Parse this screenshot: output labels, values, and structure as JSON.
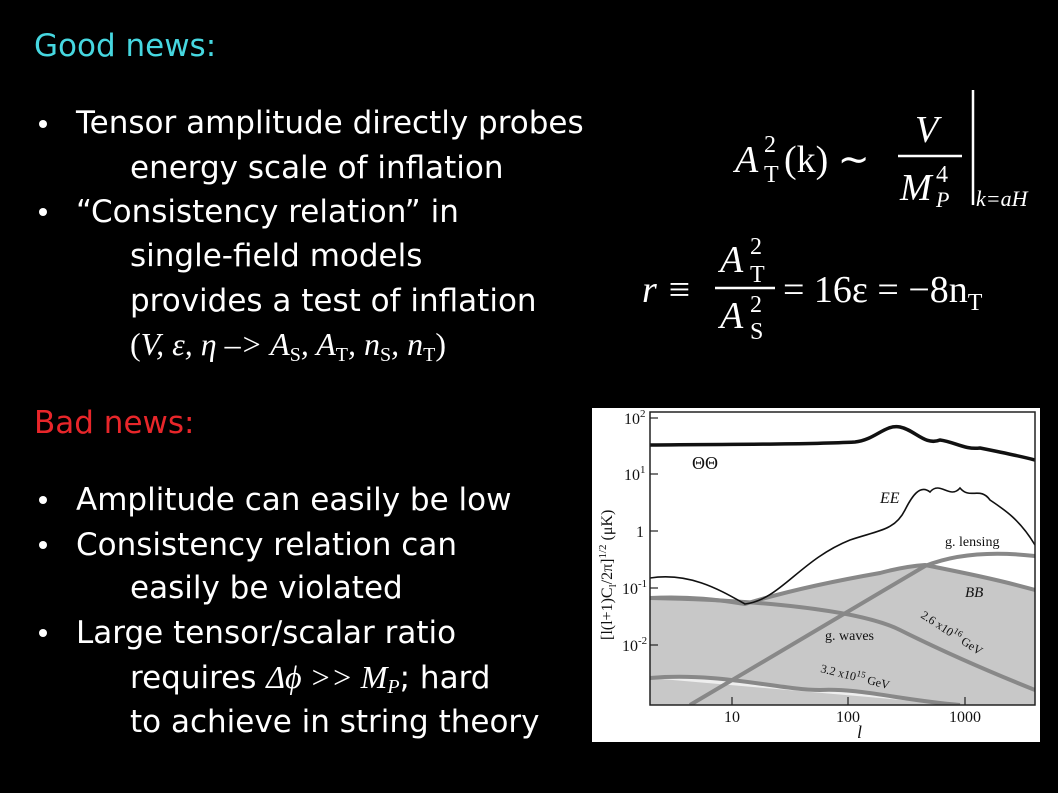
{
  "good_news": {
    "heading": "Good news:",
    "bullets": [
      {
        "lines": [
          "Tensor amplitude directly probes",
          "energy scale of inflation"
        ]
      },
      {
        "lines": [
          "“Consistency relation” in",
          "single-field models",
          "provides a test of inflation"
        ],
        "params": [
          "(",
          "V, ε, η  –> A",
          "S",
          ", A",
          "T",
          ", n",
          "S",
          ", n",
          "T",
          ")"
        ]
      }
    ]
  },
  "formulas": {
    "amplitude": {
      "lhs": "A",
      "lhs_sup": "2",
      "lhs_sub": "T",
      "lhs_arg": "(k) ∼",
      "num": "V",
      "den": "M",
      "den_sup": "4",
      "den_sub": "P",
      "eval": "k=aH"
    },
    "ratio": {
      "lhs": "r ≡",
      "num": "A",
      "num_sup": "2",
      "num_sub": "T",
      "den": "A",
      "den_sup": "2",
      "den_sub": "S",
      "rhs": "= 16ε = −8n",
      "rhs_sub": "T"
    }
  },
  "bad_news": {
    "heading": "Bad news:",
    "bullets": [
      {
        "lines": [
          "Amplitude can easily be low"
        ]
      },
      {
        "lines": [
          "Consistency relation can",
          "easily be violated"
        ]
      },
      {
        "lines": [
          "Large tensor/scalar ratio"
        ],
        "requires": [
          "requires ",
          "Δϕ >> M",
          "P",
          "; hard"
        ],
        "last": "to achieve in string theory"
      }
    ]
  },
  "plot": {
    "yticks": [
      {
        "base": "10",
        "exp": "2"
      },
      {
        "base": "10",
        "exp": "1"
      },
      {
        "base": "1"
      },
      {
        "base": "10",
        "exp": "-1"
      },
      {
        "base": "10",
        "exp": "-2"
      }
    ],
    "xticks": [
      "10",
      "100",
      "1000"
    ],
    "xlabel": "l",
    "ylabel": [
      "[l(l+1)C",
      "l",
      "/2π]",
      "1/2",
      " (μK)"
    ],
    "labels": {
      "tt": "ΘΘ",
      "ee": "EE",
      "lensing": "g. lensing",
      "bb": "BB",
      "waves": "g. waves"
    },
    "scale_high": {
      "text": "2.6 x10",
      "exp": "16",
      "unit": " GeV"
    },
    "scale_low": {
      "text": "3.2 x10",
      "exp": "15",
      "unit": " GeV"
    }
  }
}
